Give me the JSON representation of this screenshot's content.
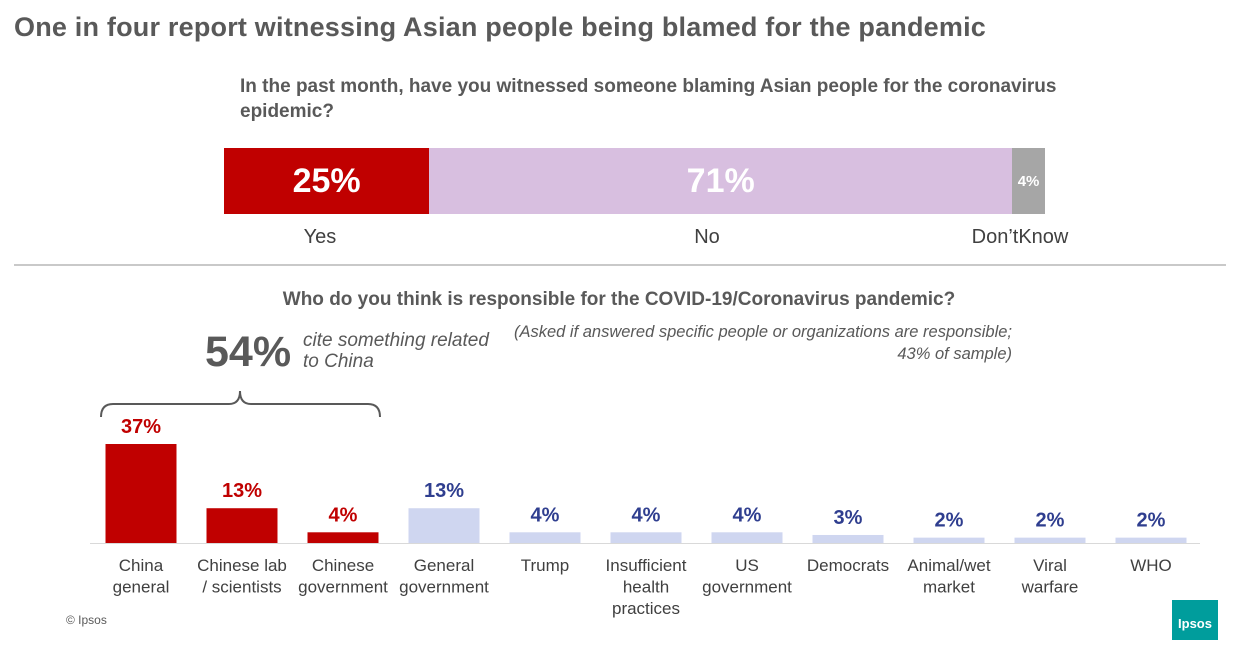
{
  "title": "One in four report witnessing Asian people being blamed for the pandemic",
  "question1": "In the past month, have you witnessed someone blaming Asian people for the coronavirus epidemic?",
  "question2": "Who do you think is responsible for the COVID-19/Coronavirus  pandemic?",
  "note": "(Asked if answered specific people or organizations are responsible; 43% of sample)",
  "china_callout": {
    "value": "54%",
    "text": "cite something related to China"
  },
  "copyright": "© Ipsos",
  "logo": "Ipsos",
  "colors": {
    "red": "#c00000",
    "lilac": "#d8bfe0",
    "gray": "#a6a6a6",
    "pale_blue": "#cfd6f0",
    "navy": "#2f3e8f"
  },
  "chart_data": [
    {
      "type": "bar",
      "orientation": "horizontal-stacked",
      "categories": [
        "Yes",
        "No",
        "Don’tKnow"
      ],
      "values": [
        25,
        71,
        4
      ],
      "value_labels": [
        "25%",
        "71%",
        "4%"
      ],
      "colors": [
        "#c00000",
        "#d8bfe0",
        "#a6a6a6"
      ]
    },
    {
      "type": "bar",
      "categories": [
        "China general",
        "Chinese lab / scientists",
        "Chinese government",
        "General government",
        "Trump",
        "Insufficient health practices",
        "US government",
        "Democrats",
        "Animal/wet market",
        "Viral warfare",
        "WHO"
      ],
      "category_lines": [
        [
          "China",
          "general"
        ],
        [
          "Chinese lab",
          "/ scientists"
        ],
        [
          "Chinese",
          "government"
        ],
        [
          "General",
          "government"
        ],
        [
          "Trump"
        ],
        [
          "Insufficient",
          "health",
          "practices"
        ],
        [
          "US",
          "government"
        ],
        [
          "Democrats"
        ],
        [
          "Animal/wet",
          "market"
        ],
        [
          "Viral",
          "warfare"
        ],
        [
          "WHO"
        ]
      ],
      "values": [
        37,
        13,
        4,
        13,
        4,
        4,
        4,
        3,
        2,
        2,
        2
      ],
      "value_labels": [
        "37%",
        "13%",
        "4%",
        "13%",
        "4%",
        "4%",
        "4%",
        "3%",
        "2%",
        "2%",
        "2%"
      ],
      "highlight": [
        true,
        true,
        true,
        false,
        false,
        false,
        false,
        false,
        false,
        false,
        false
      ]
    }
  ]
}
